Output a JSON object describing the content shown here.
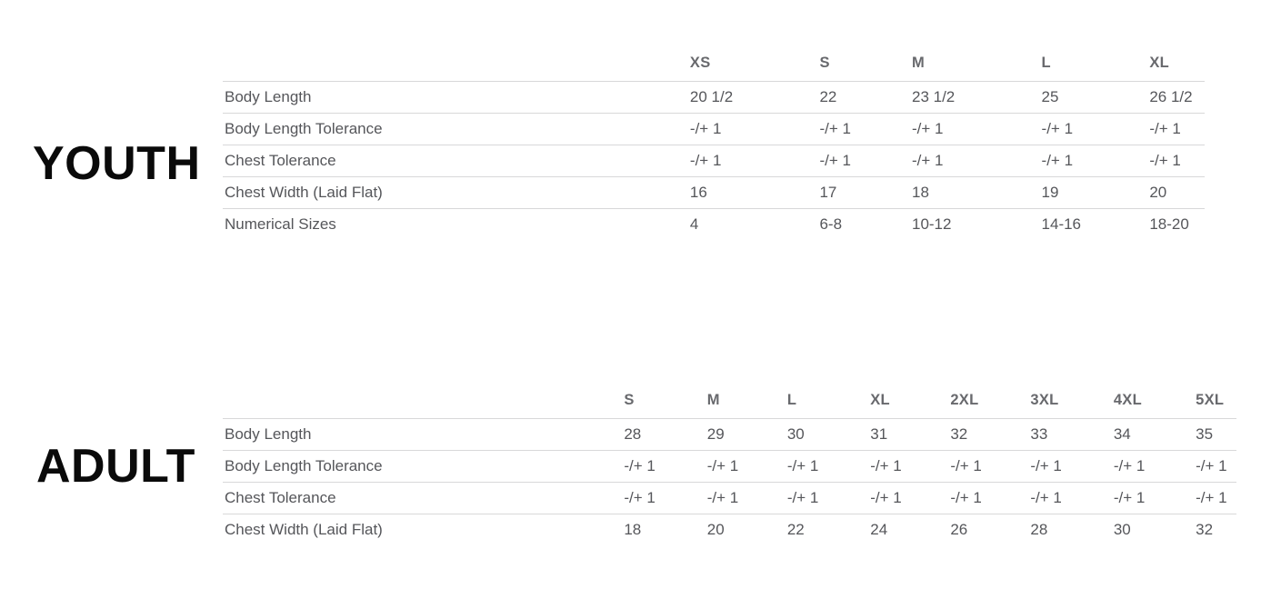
{
  "colors": {
    "background": "#ffffff",
    "table_text": "#55565a",
    "column_header_text": "#68696d",
    "row_border": "#d8d8d9",
    "section_title_text": "#0a0a0a"
  },
  "chart_data": [
    {
      "type": "table",
      "title": "YOUTH",
      "columns": [
        "XS",
        "S",
        "M",
        "L",
        "XL"
      ],
      "rows": [
        {
          "label": "Body Length",
          "values": [
            "20 1/2",
            "22",
            "23 1/2",
            "25",
            "26 1/2"
          ]
        },
        {
          "label": "Body Length Tolerance",
          "values": [
            "-/+ 1",
            "-/+ 1",
            "-/+ 1",
            "-/+ 1",
            "-/+ 1"
          ]
        },
        {
          "label": "Chest Tolerance",
          "values": [
            "-/+ 1",
            "-/+ 1",
            "-/+ 1",
            "-/+ 1",
            "-/+ 1"
          ]
        },
        {
          "label": "Chest Width (Laid Flat)",
          "values": [
            "16",
            "17",
            "18",
            "19",
            "20"
          ]
        },
        {
          "label": "Numerical Sizes",
          "values": [
            "4",
            "6-8",
            "10-12",
            "14-16",
            "18-20"
          ]
        }
      ]
    },
    {
      "type": "table",
      "title": "ADULT",
      "columns": [
        "S",
        "M",
        "L",
        "XL",
        "2XL",
        "3XL",
        "4XL",
        "5XL"
      ],
      "rows": [
        {
          "label": "Body Length",
          "values": [
            "28",
            "29",
            "30",
            "31",
            "32",
            "33",
            "34",
            "35"
          ]
        },
        {
          "label": "Body Length Tolerance",
          "values": [
            "-/+ 1",
            "-/+ 1",
            "-/+ 1",
            "-/+ 1",
            "-/+ 1",
            "-/+ 1",
            "-/+ 1",
            "-/+ 1"
          ]
        },
        {
          "label": "Chest Tolerance",
          "values": [
            "-/+ 1",
            "-/+ 1",
            "-/+ 1",
            "-/+ 1",
            "-/+ 1",
            "-/+ 1",
            "-/+ 1",
            "-/+ 1"
          ]
        },
        {
          "label": "Chest Width (Laid Flat)",
          "values": [
            "18",
            "20",
            "22",
            "24",
            "26",
            "28",
            "30",
            "32"
          ]
        }
      ]
    }
  ]
}
